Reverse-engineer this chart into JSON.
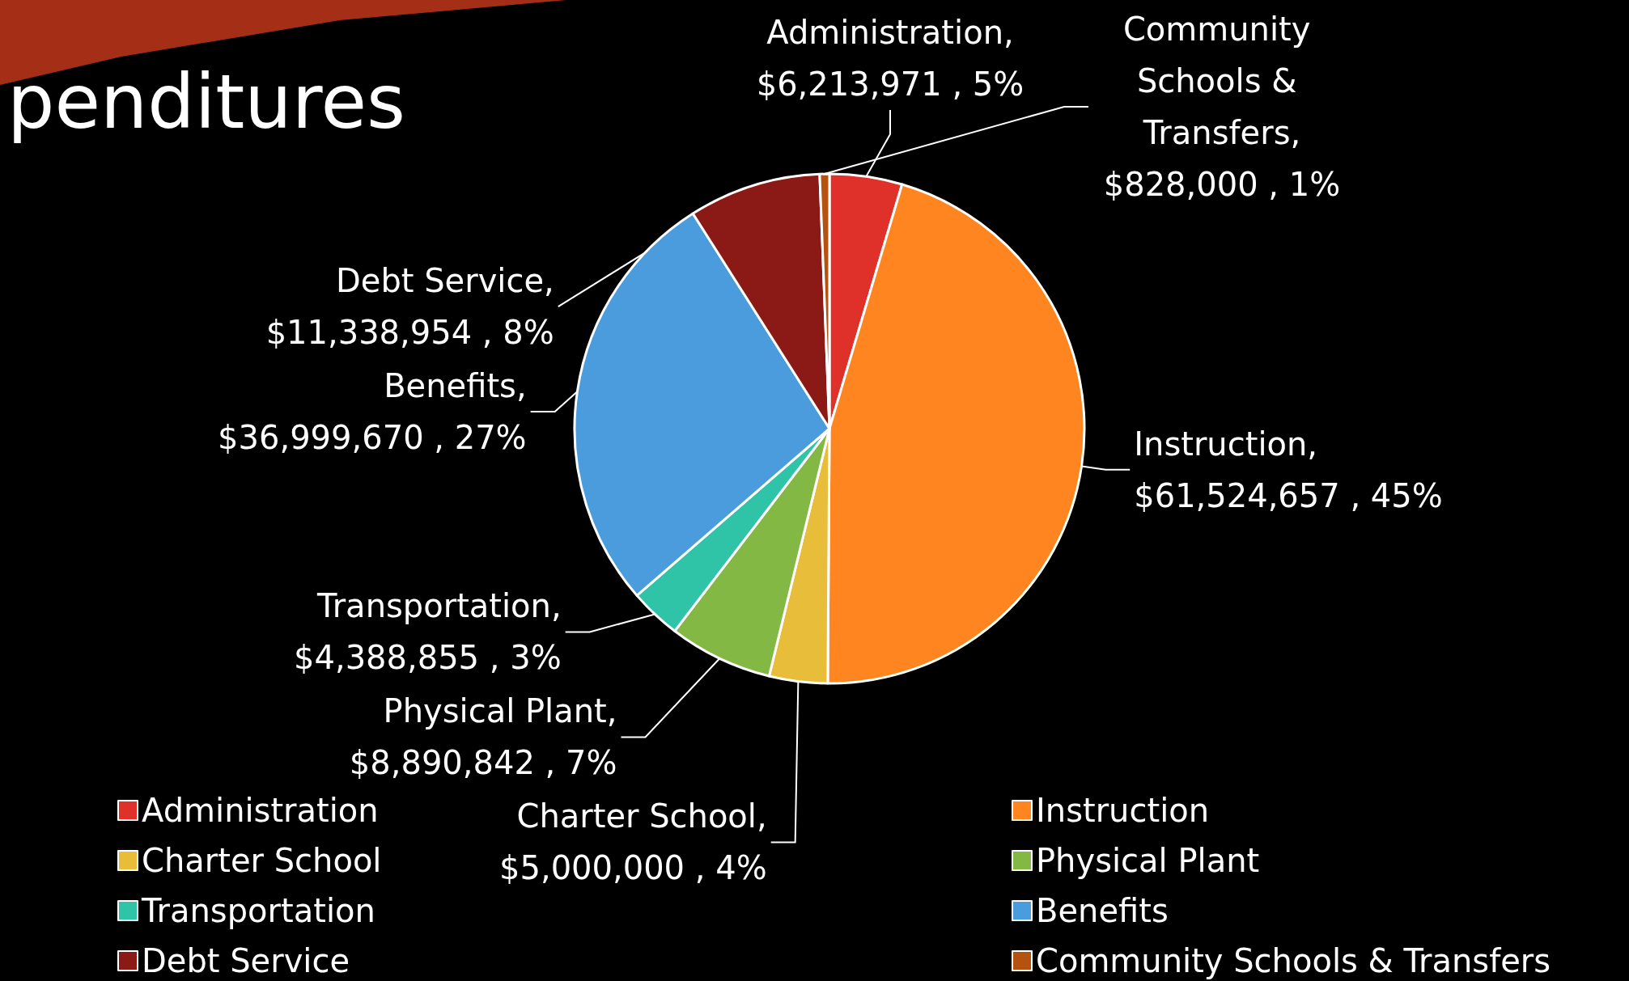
{
  "chart_data": {
    "type": "pie",
    "title": "penditures",
    "categories": [
      "Administration",
      "Instruction",
      "Charter School",
      "Physical Plant",
      "Transportation",
      "Benefits",
      "Debt Service",
      "Community Schools & Transfers"
    ],
    "values": [
      6213971,
      61524657,
      5000000,
      8890842,
      4388855,
      36999670,
      11338954,
      828000
    ],
    "value_labels": [
      "Administration, $6,213,971 , 5%",
      "Instruction, $61,524,657 , 45%",
      "Charter School, $5,000,000 , 4%",
      "Physical Plant, $8,890,842 , 7%",
      "Transportation, $4,388,855 , 3%",
      "Benefits, $36,999,670 , 27%",
      "Debt Service, $11,338,954 , 8%",
      "Community Schools & Transfers, $828,000 , 1%"
    ],
    "colors": [
      "#e0302a",
      "#ff8520",
      "#e8bd3a",
      "#84b845",
      "#2fc3a8",
      "#4b9cdc",
      "#8b1a16",
      "#b5520f"
    ],
    "legend": "bottom"
  }
}
